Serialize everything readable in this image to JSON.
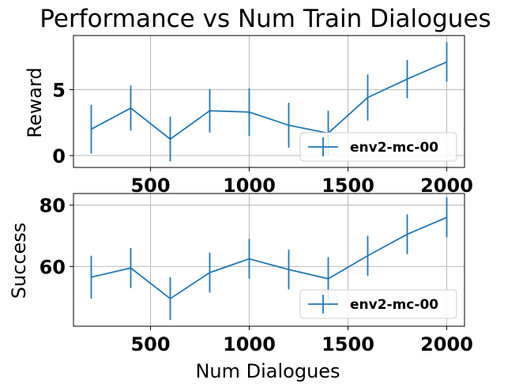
{
  "chart_data": [
    {
      "type": "line",
      "title": "Performance vs Num Train Dialogues",
      "xlabel": "",
      "ylabel": "Reward",
      "x": [
        200,
        400,
        600,
        800,
        1000,
        1200,
        1400,
        1600,
        1800,
        2000
      ],
      "series": [
        {
          "name": "env2-mc-00",
          "values": [
            2.0,
            3.6,
            1.25,
            3.4,
            3.3,
            2.3,
            1.7,
            4.4,
            5.8,
            7.1
          ],
          "errors": [
            1.85,
            1.7,
            1.7,
            1.65,
            1.8,
            1.7,
            1.7,
            1.75,
            1.45,
            1.5
          ],
          "color": "#1f77b4"
        }
      ],
      "xlim": [
        110,
        2090
      ],
      "ylim": [
        -0.9,
        9.1
      ],
      "xticks": [
        "500",
        "1000",
        "1500",
        "2000"
      ],
      "yticks": [
        "0",
        "5"
      ],
      "grid": true,
      "legend": "lower-right"
    },
    {
      "type": "line",
      "title": "",
      "xlabel": "Num Dialogues",
      "ylabel": "Success",
      "x": [
        200,
        400,
        600,
        800,
        1000,
        1200,
        1400,
        1600,
        1800,
        2000
      ],
      "series": [
        {
          "name": "env2-mc-00",
          "values": [
            56.5,
            59.5,
            49.5,
            58,
            62.5,
            59,
            56,
            63.5,
            70.5,
            76
          ],
          "errors": [
            7,
            6.5,
            7,
            6.5,
            6.5,
            6.5,
            7,
            6.5,
            6.5,
            6.5
          ],
          "color": "#1f77b4"
        }
      ],
      "xlim": [
        110,
        2090
      ],
      "ylim": [
        40.5,
        83.8
      ],
      "xticks": [
        "500",
        "1000",
        "1500",
        "2000"
      ],
      "yticks": [
        "60",
        "80"
      ],
      "grid": true,
      "legend": "lower-right"
    }
  ]
}
